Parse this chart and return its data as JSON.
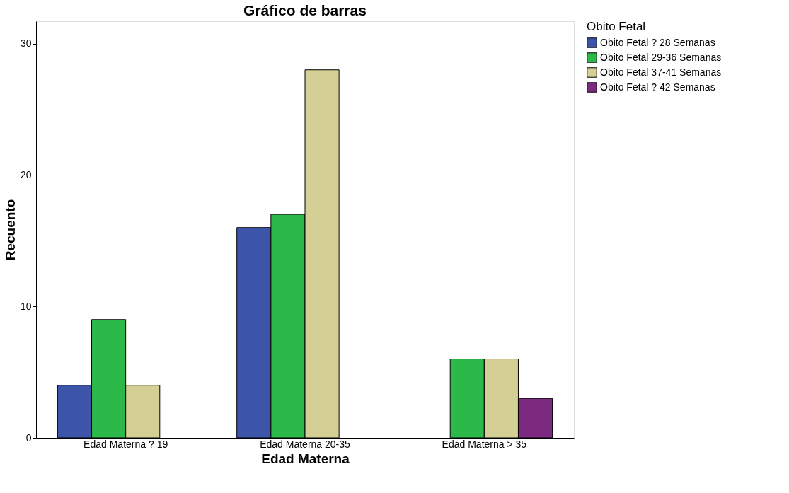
{
  "chart_data": {
    "type": "bar",
    "title": "Gráfico de barras",
    "xlabel": "Edad Materna",
    "ylabel": "Recuento",
    "legend_title": "Obito Fetal",
    "categories": [
      "Edad Materna ? 19",
      "Edad Materna 20-35",
      "Edad Materna > 35"
    ],
    "series": [
      {
        "name": "Obito Fetal ? 28 Semanas",
        "color": "#3d55a8",
        "values": [
          4,
          16,
          null
        ]
      },
      {
        "name": "Obito Fetal 29-36 Semanas",
        "color": "#2db84a",
        "values": [
          9,
          17,
          6
        ]
      },
      {
        "name": "Obito Fetal 37-41 Semanas",
        "color": "#d4cf94",
        "values": [
          4,
          28,
          6
        ]
      },
      {
        "name": "Obito Fetal ? 42 Semanas",
        "color": "#7b2a7f",
        "values": [
          null,
          null,
          3
        ]
      }
    ],
    "ylim": [
      0,
      31.7
    ],
    "yticks": [
      0,
      10,
      20,
      30
    ],
    "grid": false,
    "legend": "top right"
  }
}
